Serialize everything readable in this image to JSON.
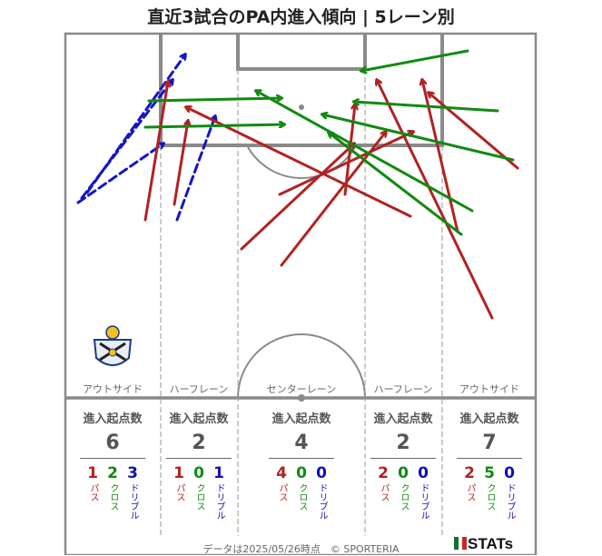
{
  "title": "直近3試合のPA内進入傾向 | 5レーン別",
  "lanes": [
    {
      "name": "アウトサイド",
      "header": "進入起点数",
      "total": "6",
      "pass": "1",
      "cross": "2",
      "dribble": "3"
    },
    {
      "name": "ハーフレーン",
      "header": "進入起点数",
      "total": "2",
      "pass": "1",
      "cross": "0",
      "dribble": "1"
    },
    {
      "name": "センターレーン",
      "header": "進入起点数",
      "total": "4",
      "pass": "4",
      "cross": "0",
      "dribble": "0"
    },
    {
      "name": "ハーフレーン",
      "header": "進入起点数",
      "total": "2",
      "pass": "2",
      "cross": "0",
      "dribble": "0"
    },
    {
      "name": "アウトサイド",
      "header": "進入起点数",
      "total": "7",
      "pass": "2",
      "cross": "5",
      "dribble": "0"
    }
  ],
  "labels": {
    "pass": "パス",
    "cross": "クロス",
    "dribble": "ドリブル"
  },
  "footer": "データは2025/05/26時点　© SPORTERIA",
  "brand": "STATs",
  "colors": {
    "pass": "#b22222",
    "cross": "#118a11",
    "dribble": "#1515c8",
    "lines": "#888888"
  },
  "chart_data": {
    "type": "arrow-map",
    "arrows": [
      {
        "kind": "dribble",
        "from": [
          86,
          223
        ],
        "to": [
          180,
          158
        ]
      },
      {
        "kind": "dribble",
        "from": [
          90,
          218
        ],
        "to": [
          190,
          88
        ]
      },
      {
        "kind": "dribble",
        "from": [
          96,
          212
        ],
        "to": [
          204,
          60
        ]
      },
      {
        "kind": "dribble",
        "from": [
          195,
          242
        ],
        "to": [
          237,
          128
        ]
      },
      {
        "kind": "pass",
        "from": [
          160,
          242
        ],
        "to": [
          185,
          90
        ]
      },
      {
        "kind": "pass",
        "from": [
          192,
          225
        ],
        "to": [
          207,
          133
        ]
      },
      {
        "kind": "pass",
        "from": [
          452,
          238
        ],
        "to": [
          205,
          118
        ]
      },
      {
        "kind": "pass",
        "from": [
          266,
          274
        ],
        "to": [
          390,
          158
        ]
      },
      {
        "kind": "pass",
        "from": [
          310,
          292
        ],
        "to": [
          425,
          145
        ]
      },
      {
        "kind": "pass",
        "from": [
          308,
          214
        ],
        "to": [
          455,
          145
        ]
      },
      {
        "kind": "pass",
        "from": [
          380,
          214
        ],
        "to": [
          391,
          115
        ]
      },
      {
        "kind": "pass",
        "from": [
          542,
          350
        ],
        "to": [
          415,
          88
        ]
      },
      {
        "kind": "pass",
        "from": [
          504,
          255
        ],
        "to": [
          465,
          88
        ]
      },
      {
        "kind": "pass",
        "from": [
          570,
          185
        ],
        "to": [
          472,
          102
        ]
      },
      {
        "kind": "cross",
        "from": [
          164,
          111
        ],
        "to": [
          310,
          108
        ]
      },
      {
        "kind": "cross",
        "from": [
          160,
          140
        ],
        "to": [
          313,
          137
        ]
      },
      {
        "kind": "cross",
        "from": [
          515,
          56
        ],
        "to": [
          398,
          78
        ]
      },
      {
        "kind": "cross",
        "from": [
          548,
          122
        ],
        "to": [
          390,
          112
        ]
      },
      {
        "kind": "cross",
        "from": [
          565,
          176
        ],
        "to": [
          355,
          126
        ]
      },
      {
        "kind": "cross",
        "from": [
          520,
          232
        ],
        "to": [
          282,
          100
        ]
      },
      {
        "kind": "cross",
        "from": [
          508,
          258
        ],
        "to": [
          362,
          146
        ]
      }
    ]
  }
}
